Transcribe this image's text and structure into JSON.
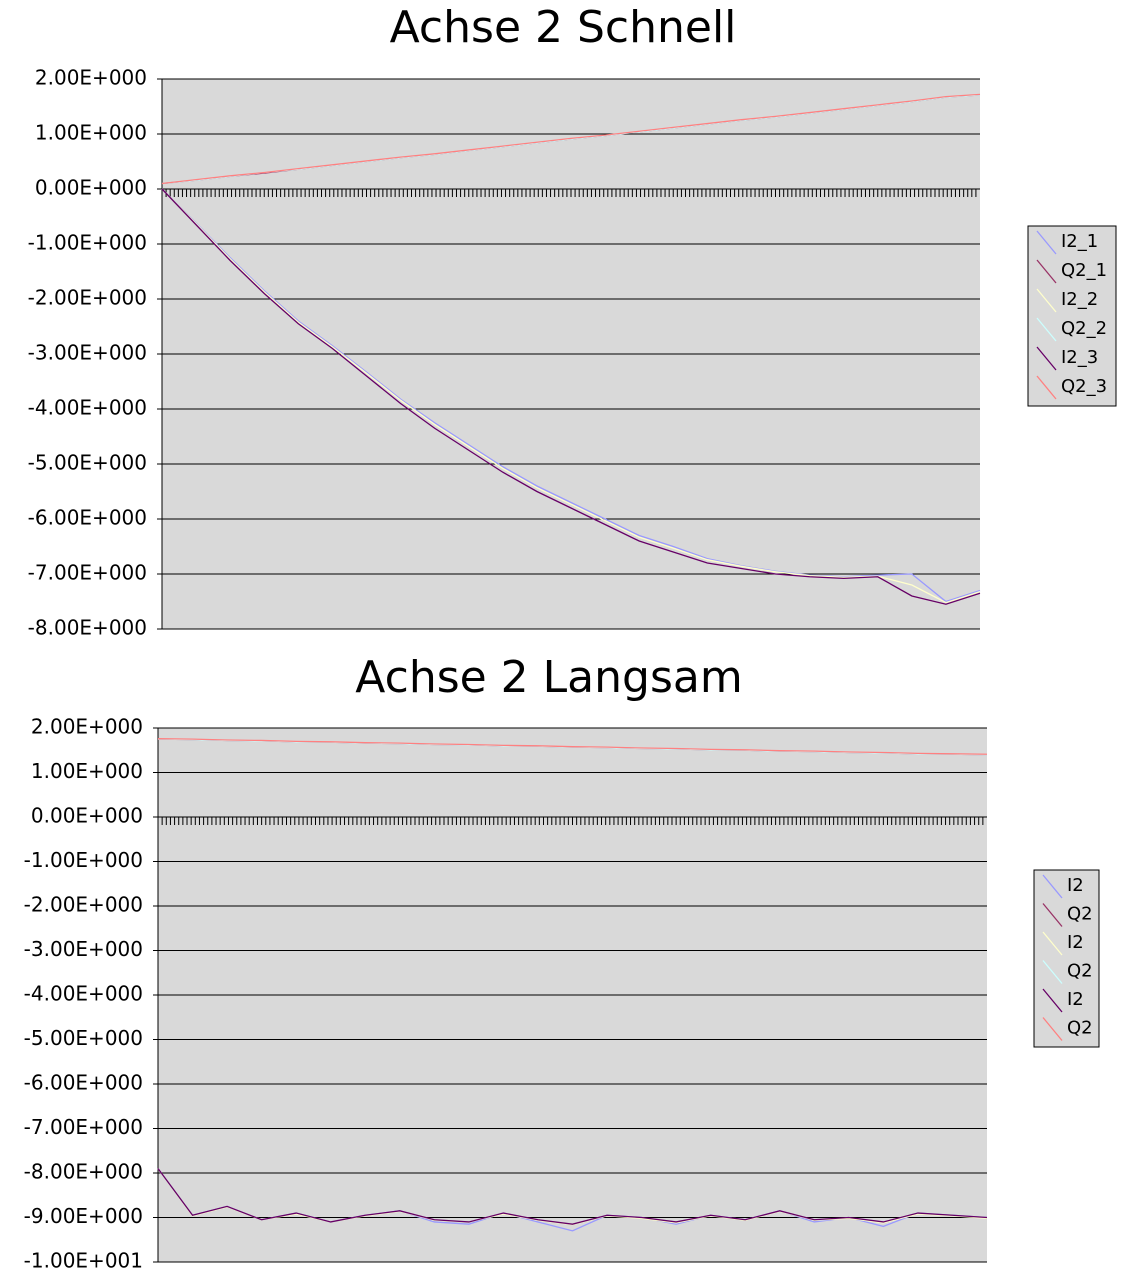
{
  "chart_data": [
    {
      "type": "line",
      "title": "Achse 2 Schnell",
      "grid": true,
      "legend": "right",
      "categories": [
        null,
        null,
        null,
        null,
        null,
        null,
        null,
        null,
        null,
        null,
        null,
        null,
        null,
        null,
        null,
        null,
        null,
        null,
        null,
        null,
        null,
        null,
        null,
        null,
        null
      ],
      "ylim": [
        -8,
        2
      ],
      "yticks": [
        {
          "value": 2,
          "label": "2.00E+000"
        },
        {
          "value": 1,
          "label": "1.00E+000"
        },
        {
          "value": 0,
          "label": "0.00E+000"
        },
        {
          "value": -1,
          "label": "-1.00E+000"
        },
        {
          "value": -2,
          "label": "-2.00E+000"
        },
        {
          "value": -3,
          "label": "-3.00E+000"
        },
        {
          "value": -4,
          "label": "-4.00E+000"
        },
        {
          "value": -5,
          "label": "-5.00E+000"
        },
        {
          "value": -6,
          "label": "-6.00E+000"
        },
        {
          "value": -7,
          "label": "-7.00E+000"
        },
        {
          "value": -8,
          "label": "-8.00E+000"
        }
      ],
      "series": [
        {
          "name": "I2_1",
          "color": "#9999ff",
          "values": [
            0,
            -0.62,
            -1.25,
            -1.85,
            -2.4,
            -2.85,
            -3.33,
            -3.82,
            -4.25,
            -4.65,
            -5.05,
            -5.4,
            -5.7,
            -6.0,
            -6.3,
            -6.5,
            -6.72,
            -6.85,
            -6.95,
            -7.02,
            -7.05,
            -7.02,
            -7.0,
            -7.5,
            -7.3
          ]
        },
        {
          "name": "Q2_1",
          "color": "#993366",
          "values": [
            0.1,
            0.16,
            0.23,
            0.29,
            0.36,
            0.43,
            0.5,
            0.57,
            0.63,
            0.7,
            0.77,
            0.84,
            0.91,
            0.97,
            1.04,
            1.11,
            1.18,
            1.25,
            1.31,
            1.38,
            1.45,
            1.52,
            1.59,
            1.67,
            1.71
          ]
        },
        {
          "name": "I2_2",
          "color": "#ffffcc",
          "values": [
            0,
            -0.63,
            -1.27,
            -1.87,
            -2.42,
            -2.87,
            -3.35,
            -3.84,
            -4.28,
            -4.68,
            -5.08,
            -5.43,
            -5.73,
            -6.03,
            -6.33,
            -6.53,
            -6.74,
            -6.86,
            -6.96,
            -7.03,
            -7.06,
            -7.04,
            -7.2,
            -7.52,
            -7.32
          ]
        },
        {
          "name": "Q2_2",
          "color": "#ccffff",
          "values": [
            0.1,
            0.16,
            0.23,
            0.3,
            0.36,
            0.43,
            0.5,
            0.57,
            0.63,
            0.7,
            0.77,
            0.84,
            0.91,
            0.97,
            1.04,
            1.11,
            1.18,
            1.25,
            1.31,
            1.38,
            1.45,
            1.52,
            1.59,
            1.67,
            1.71
          ]
        },
        {
          "name": "I2_3",
          "color": "#660066",
          "values": [
            0,
            -0.65,
            -1.3,
            -1.9,
            -2.45,
            -2.9,
            -3.4,
            -3.9,
            -4.35,
            -4.75,
            -5.15,
            -5.5,
            -5.8,
            -6.1,
            -6.4,
            -6.6,
            -6.8,
            -6.9,
            -7.0,
            -7.05,
            -7.08,
            -7.05,
            -7.4,
            -7.55,
            -7.35
          ]
        },
        {
          "name": "Q2_3",
          "color": "#ff8080",
          "values": [
            0.1,
            0.17,
            0.24,
            0.3,
            0.37,
            0.44,
            0.51,
            0.58,
            0.64,
            0.71,
            0.78,
            0.85,
            0.92,
            0.98,
            1.05,
            1.12,
            1.19,
            1.26,
            1.32,
            1.39,
            1.46,
            1.53,
            1.6,
            1.68,
            1.72
          ]
        }
      ]
    },
    {
      "type": "line",
      "title": "Achse 2 Langsam",
      "grid": true,
      "legend": "right",
      "categories": [
        null,
        null,
        null,
        null,
        null,
        null,
        null,
        null,
        null,
        null,
        null,
        null,
        null,
        null,
        null,
        null,
        null,
        null,
        null,
        null,
        null,
        null,
        null,
        null,
        null
      ],
      "ylim": [
        -10,
        2
      ],
      "yticks": [
        {
          "value": 2,
          "label": "2.00E+000"
        },
        {
          "value": 1,
          "label": "1.00E+000"
        },
        {
          "value": 0,
          "label": "0.00E+000"
        },
        {
          "value": -1,
          "label": "-1.00E+000"
        },
        {
          "value": -2,
          "label": "-2.00E+000"
        },
        {
          "value": -3,
          "label": "-3.00E+000"
        },
        {
          "value": -4,
          "label": "-4.00E+000"
        },
        {
          "value": -5,
          "label": "-5.00E+000"
        },
        {
          "value": -6,
          "label": "-6.00E+000"
        },
        {
          "value": -7,
          "label": "-7.00E+000"
        },
        {
          "value": -8,
          "label": "-8.00E+000"
        },
        {
          "value": -9,
          "label": "-9.00E+000"
        },
        {
          "value": -10,
          "label": "-1.00E+001"
        }
      ],
      "series": [
        {
          "name": "I2",
          "color": "#9999ff",
          "values": [
            -7.9,
            -8.95,
            -8.75,
            -9.05,
            -8.9,
            -9.1,
            -8.95,
            -8.85,
            -9.1,
            -9.15,
            -8.9,
            -9.1,
            -9.3,
            -8.95,
            -9.0,
            -9.15,
            -8.95,
            -9.05,
            -8.85,
            -9.1,
            -9.0,
            -9.2,
            -8.9,
            -8.95,
            -9.0
          ]
        },
        {
          "name": "Q2",
          "color": "#993366",
          "values": [
            1.75,
            1.74,
            1.72,
            1.71,
            1.69,
            1.68,
            1.66,
            1.65,
            1.63,
            1.62,
            1.6,
            1.59,
            1.57,
            1.56,
            1.54,
            1.53,
            1.51,
            1.5,
            1.48,
            1.47,
            1.45,
            1.44,
            1.42,
            1.41,
            1.4
          ]
        },
        {
          "name": "I2",
          "color": "#ffffcc",
          "values": [
            -7.9,
            -8.96,
            -8.76,
            -9.05,
            -8.92,
            -9.1,
            -8.96,
            -8.86,
            -9.06,
            -9.1,
            -8.92,
            -9.06,
            -9.16,
            -8.96,
            -9.02,
            -9.12,
            -8.96,
            -9.06,
            -8.86,
            -9.06,
            -9.02,
            -9.12,
            -8.92,
            -8.96,
            -9.02
          ]
        },
        {
          "name": "Q2",
          "color": "#ccffff",
          "values": [
            1.75,
            1.74,
            1.72,
            1.71,
            1.69,
            1.68,
            1.66,
            1.65,
            1.63,
            1.62,
            1.6,
            1.59,
            1.57,
            1.56,
            1.54,
            1.53,
            1.51,
            1.5,
            1.48,
            1.47,
            1.45,
            1.44,
            1.42,
            1.41,
            1.4
          ]
        },
        {
          "name": "I2",
          "color": "#660066",
          "values": [
            -7.9,
            -8.95,
            -8.75,
            -9.05,
            -8.9,
            -9.1,
            -8.95,
            -8.85,
            -9.05,
            -9.1,
            -8.9,
            -9.05,
            -9.15,
            -8.95,
            -9.0,
            -9.1,
            -8.95,
            -9.05,
            -8.85,
            -9.05,
            -9.0,
            -9.1,
            -8.9,
            -8.95,
            -9.0
          ]
        },
        {
          "name": "Q2",
          "color": "#ff8080",
          "values": [
            1.76,
            1.75,
            1.73,
            1.72,
            1.7,
            1.69,
            1.67,
            1.66,
            1.64,
            1.63,
            1.61,
            1.6,
            1.58,
            1.57,
            1.55,
            1.54,
            1.52,
            1.51,
            1.49,
            1.48,
            1.46,
            1.45,
            1.43,
            1.42,
            1.41
          ]
        }
      ]
    }
  ]
}
